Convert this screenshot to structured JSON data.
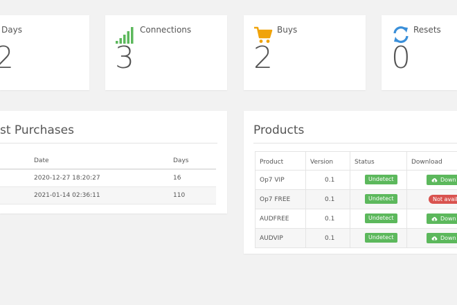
{
  "stats": [
    {
      "label": "Days",
      "value": "2",
      "icon": "calendar-icon"
    },
    {
      "label": "Connections",
      "value": "3",
      "icon": "signal-bars-icon",
      "color": "#5cb85c"
    },
    {
      "label": "Buys",
      "value": "2",
      "icon": "shopping-cart-icon",
      "color": "#f0a30a"
    },
    {
      "label": "Resets",
      "value": "0",
      "icon": "refresh-icon",
      "color": "#3a8fd9"
    }
  ],
  "purchases": {
    "title": "st Purchases",
    "columns": {
      "date": "Date",
      "days": "Days"
    },
    "rows": [
      {
        "date": "2020-12-27 18:20:27",
        "days": "16"
      },
      {
        "date": "2021-01-14 02:36:11",
        "days": "110"
      }
    ]
  },
  "products": {
    "title": "Products",
    "columns": {
      "product": "Product",
      "version": "Version",
      "status": "Status",
      "download": "Download"
    },
    "rows": [
      {
        "product": "Op7 VIP",
        "version": "0.1",
        "status": "Undetect",
        "download": "Down",
        "download_available": true
      },
      {
        "product": "Op7 FREE",
        "version": "0.1",
        "status": "Undetect",
        "download": "Not availa",
        "download_available": false
      },
      {
        "product": "AUDFREE",
        "version": "0.1",
        "status": "Undetect",
        "download": "Down",
        "download_available": true
      },
      {
        "product": "AUDVIP",
        "version": "0.1",
        "status": "Undetect",
        "download": "Down",
        "download_available": true
      }
    ]
  },
  "colors": {
    "success": "#5cb85c",
    "danger": "#d9534f",
    "background": "#f2f2f2"
  }
}
